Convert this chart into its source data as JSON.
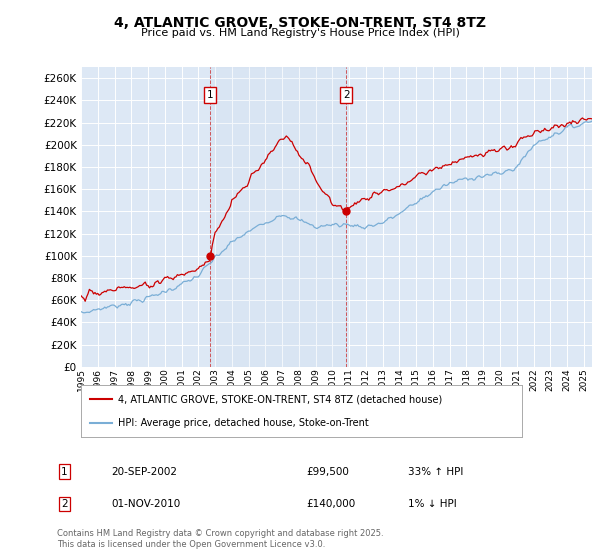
{
  "title": "4, ATLANTIC GROVE, STOKE-ON-TRENT, ST4 8TZ",
  "subtitle": "Price paid vs. HM Land Registry's House Price Index (HPI)",
  "ylim": [
    0,
    270000
  ],
  "yticks": [
    0,
    20000,
    40000,
    60000,
    80000,
    100000,
    120000,
    140000,
    160000,
    180000,
    200000,
    220000,
    240000,
    260000
  ],
  "hpi_color": "#7aaed6",
  "price_color": "#cc0000",
  "bg_plot": "#dde8f5",
  "bg_fig": "#ffffff",
  "grid_color": "#ffffff",
  "purchase1_date": 2002.72,
  "purchase1_price": 99500,
  "purchase1_label": "1",
  "purchase2_date": 2010.83,
  "purchase2_price": 140000,
  "purchase2_label": "2",
  "legend_line1": "4, ATLANTIC GROVE, STOKE-ON-TRENT, ST4 8TZ (detached house)",
  "legend_line2": "HPI: Average price, detached house, Stoke-on-Trent",
  "table_row1_num": "1",
  "table_row1_date": "20-SEP-2002",
  "table_row1_price": "£99,500",
  "table_row1_hpi": "33% ↑ HPI",
  "table_row2_num": "2",
  "table_row2_date": "01-NOV-2010",
  "table_row2_price": "£140,000",
  "table_row2_hpi": "1% ↓ HPI",
  "footer": "Contains HM Land Registry data © Crown copyright and database right 2025.\nThis data is licensed under the Open Government Licence v3.0.",
  "xstart": 1995.0,
  "xend": 2025.5,
  "hpi_base_x": [
    1995,
    1996,
    1997,
    1998,
    1999,
    2000,
    2001,
    2002,
    2003,
    2004,
    2005,
    2006,
    2007,
    2008,
    2009,
    2010,
    2011,
    2012,
    2013,
    2014,
    2015,
    2016,
    2017,
    2018,
    2019,
    2020,
    2021,
    2022,
    2023,
    2024,
    2025.5
  ],
  "hpi_base_y": [
    48000,
    52000,
    55000,
    58000,
    62000,
    68000,
    74000,
    82000,
    98000,
    112000,
    122000,
    130000,
    138000,
    132000,
    126000,
    128000,
    128000,
    126000,
    130000,
    138000,
    148000,
    158000,
    165000,
    170000,
    172000,
    174000,
    180000,
    200000,
    208000,
    215000,
    222000
  ],
  "price_base_x": [
    1995,
    1996,
    1997,
    1998,
    1999,
    2000,
    2001,
    2002,
    2002.72,
    2003,
    2004,
    2005,
    2006,
    2007.3,
    2007.8,
    2008.5,
    2009,
    2009.5,
    2010,
    2010.5,
    2010.83,
    2011,
    2011.5,
    2012,
    2013,
    2014,
    2015,
    2016,
    2017,
    2018,
    2019,
    2020,
    2021,
    2022,
    2023,
    2024,
    2025.5
  ],
  "price_base_y": [
    63000,
    66000,
    70000,
    72000,
    74000,
    78000,
    82000,
    88000,
    99500,
    118000,
    148000,
    168000,
    188000,
    210000,
    198000,
    182000,
    168000,
    155000,
    148000,
    142000,
    140000,
    143000,
    150000,
    152000,
    158000,
    163000,
    172000,
    178000,
    183000,
    188000,
    192000,
    196000,
    202000,
    210000,
    215000,
    218000,
    225000
  ]
}
